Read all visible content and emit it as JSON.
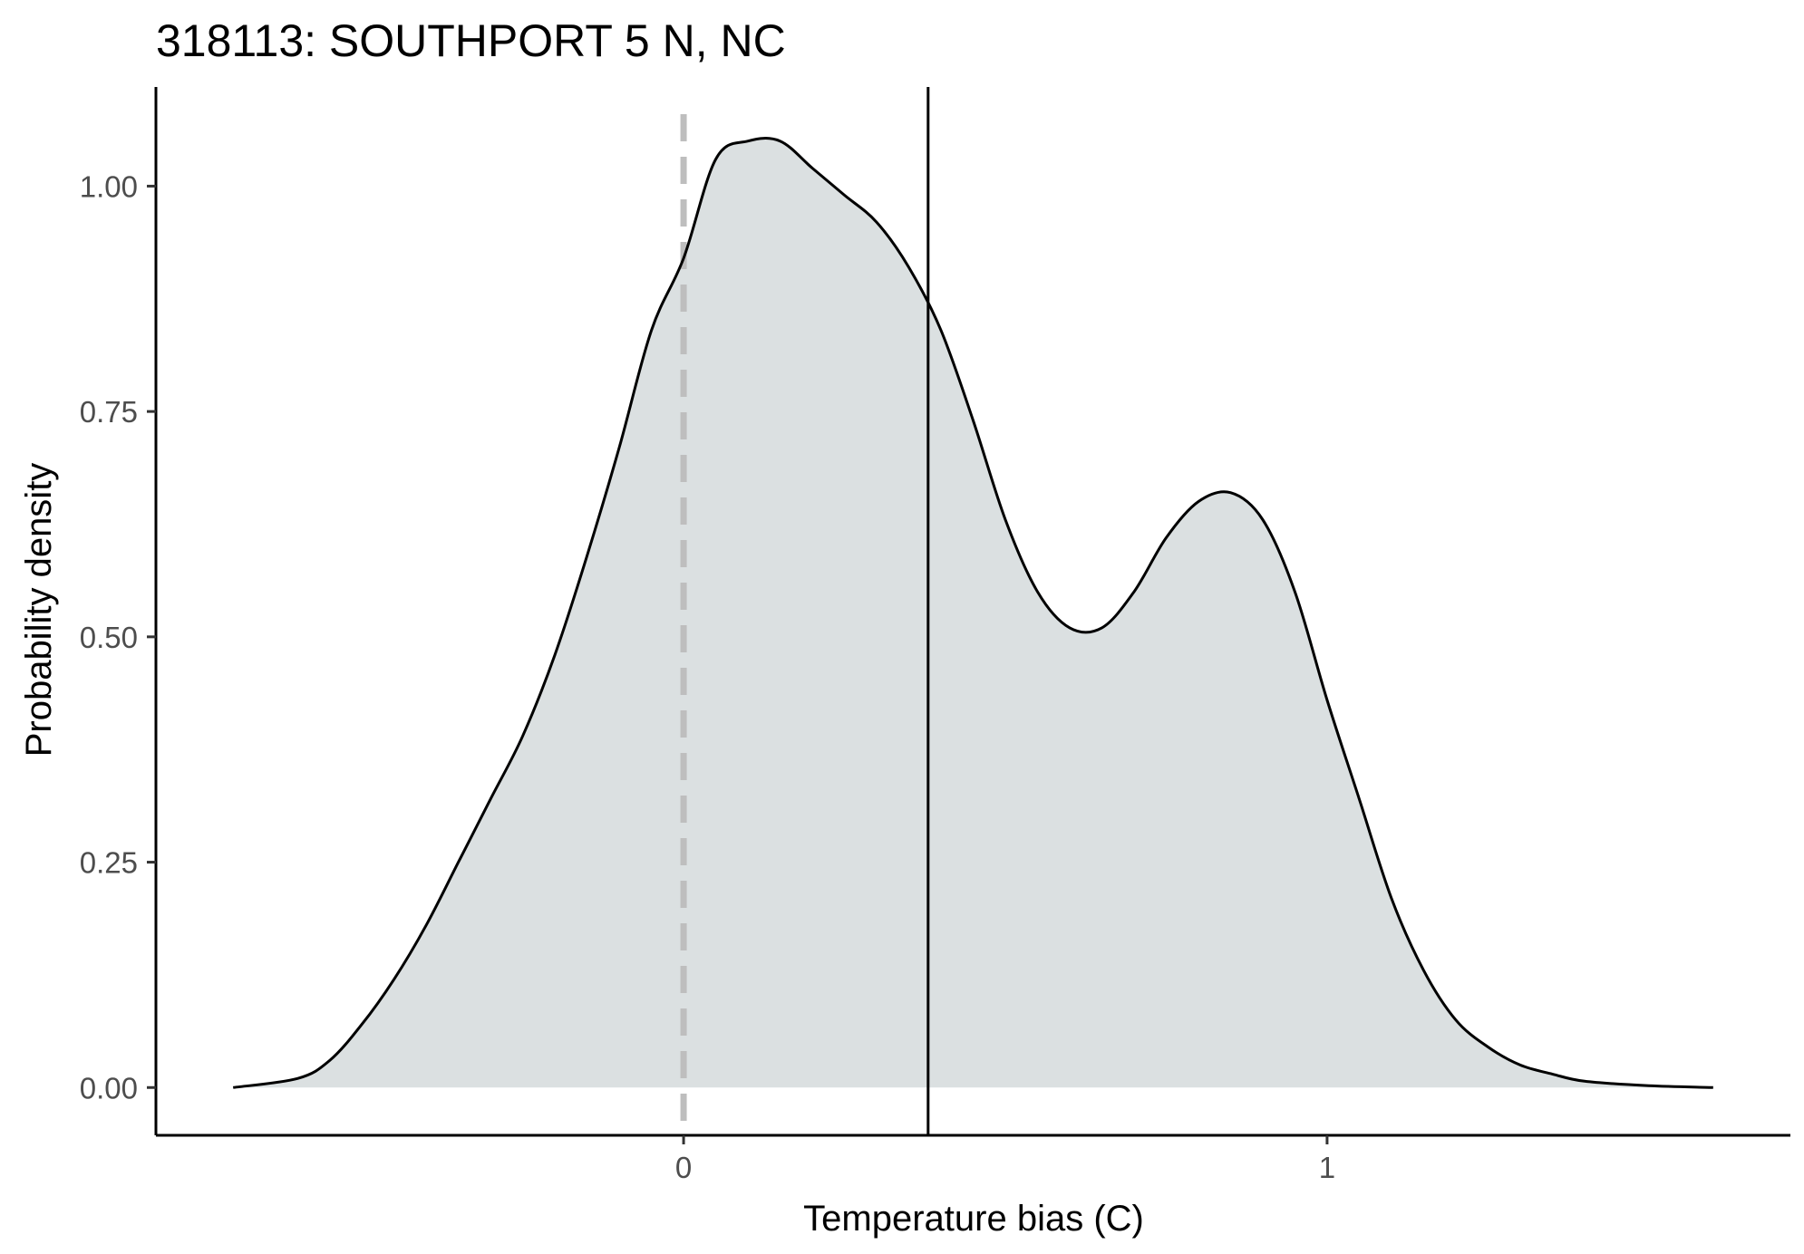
{
  "chart_data": {
    "type": "area",
    "title": "318113: SOUTHPORT 5 N, NC",
    "xlabel": "Temperature bias (C)",
    "ylabel": "Probability density",
    "xlim": [
      -0.82,
      1.72
    ],
    "ylim": [
      -0.053,
      1.11
    ],
    "x_ticks": [
      {
        "value": 0,
        "label": "0"
      },
      {
        "value": 1,
        "label": "1"
      }
    ],
    "y_ticks": [
      {
        "value": 0.0,
        "label": "0.00"
      },
      {
        "value": 0.25,
        "label": "0.25"
      },
      {
        "value": 0.5,
        "label": "0.50"
      },
      {
        "value": 0.75,
        "label": "0.75"
      },
      {
        "value": 1.0,
        "label": "1.00"
      }
    ],
    "grid": false,
    "legend": "none",
    "reference_lines": [
      {
        "x": 0,
        "style": "dashed",
        "color": "#bebebe"
      },
      {
        "x": 0.38,
        "style": "solid",
        "color": "#000000"
      }
    ],
    "fill_color": "#dbe0e1",
    "line_color": "#000000",
    "series": [
      {
        "x": [
          -0.7,
          -0.6,
          -0.55,
          -0.5,
          -0.45,
          -0.4,
          -0.35,
          -0.3,
          -0.25,
          -0.2,
          -0.15,
          -0.1,
          -0.05,
          0.0,
          0.05,
          0.1,
          0.15,
          0.2,
          0.25,
          0.3,
          0.35,
          0.4,
          0.45,
          0.5,
          0.55,
          0.6,
          0.65,
          0.7,
          0.75,
          0.8,
          0.85,
          0.9,
          0.95,
          1.0,
          1.05,
          1.1,
          1.15,
          1.2,
          1.25,
          1.3,
          1.35,
          1.4,
          1.5,
          1.6
        ],
        "y": [
          0.0,
          0.01,
          0.03,
          0.07,
          0.12,
          0.18,
          0.25,
          0.32,
          0.39,
          0.48,
          0.59,
          0.71,
          0.84,
          0.92,
          1.03,
          1.05,
          1.05,
          1.02,
          0.99,
          0.96,
          0.91,
          0.84,
          0.74,
          0.63,
          0.55,
          0.51,
          0.51,
          0.55,
          0.61,
          0.65,
          0.66,
          0.63,
          0.55,
          0.43,
          0.32,
          0.21,
          0.13,
          0.075,
          0.045,
          0.025,
          0.015,
          0.007,
          0.002,
          0.0
        ]
      }
    ]
  }
}
